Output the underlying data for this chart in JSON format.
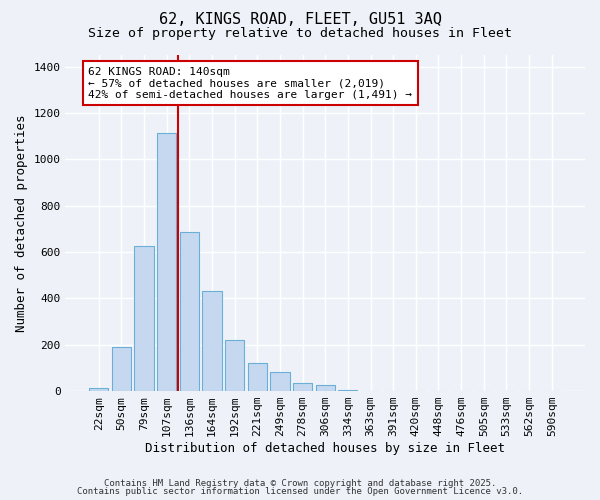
{
  "title1": "62, KINGS ROAD, FLEET, GU51 3AQ",
  "title2": "Size of property relative to detached houses in Fleet",
  "xlabel": "Distribution of detached houses by size in Fleet",
  "ylabel": "Number of detached properties",
  "bar_labels": [
    "22sqm",
    "50sqm",
    "79sqm",
    "107sqm",
    "136sqm",
    "164sqm",
    "192sqm",
    "221sqm",
    "249sqm",
    "278sqm",
    "306sqm",
    "334sqm",
    "363sqm",
    "391sqm",
    "420sqm",
    "448sqm",
    "476sqm",
    "505sqm",
    "533sqm",
    "562sqm",
    "590sqm"
  ],
  "bar_values": [
    15,
    192,
    628,
    1112,
    685,
    430,
    222,
    122,
    82,
    35,
    26,
    5,
    0,
    0,
    0,
    0,
    0,
    0,
    0,
    0,
    0
  ],
  "bar_color": "#c5d8f0",
  "bar_edge_color": "#6baed6",
  "property_line_x": 3.5,
  "property_line_color": "#cc0000",
  "annotation_title": "62 KINGS ROAD: 140sqm",
  "annotation_line1": "← 57% of detached houses are smaller (2,019)",
  "annotation_line2": "42% of semi-detached houses are larger (1,491) →",
  "annotation_box_color": "#ffffff",
  "annotation_box_edge": "#cc0000",
  "ylim": [
    0,
    1450
  ],
  "yticks": [
    0,
    200,
    400,
    600,
    800,
    1000,
    1200,
    1400
  ],
  "footer1": "Contains HM Land Registry data © Crown copyright and database right 2025.",
  "footer2": "Contains public sector information licensed under the Open Government Licence v3.0.",
  "bg_color": "#eef2f8",
  "grid_color": "#ffffff",
  "tick_label_fontsize": 8,
  "ylabel_fontsize": 9,
  "xlabel_fontsize": 9,
  "title1_fontsize": 11,
  "title2_fontsize": 9.5
}
